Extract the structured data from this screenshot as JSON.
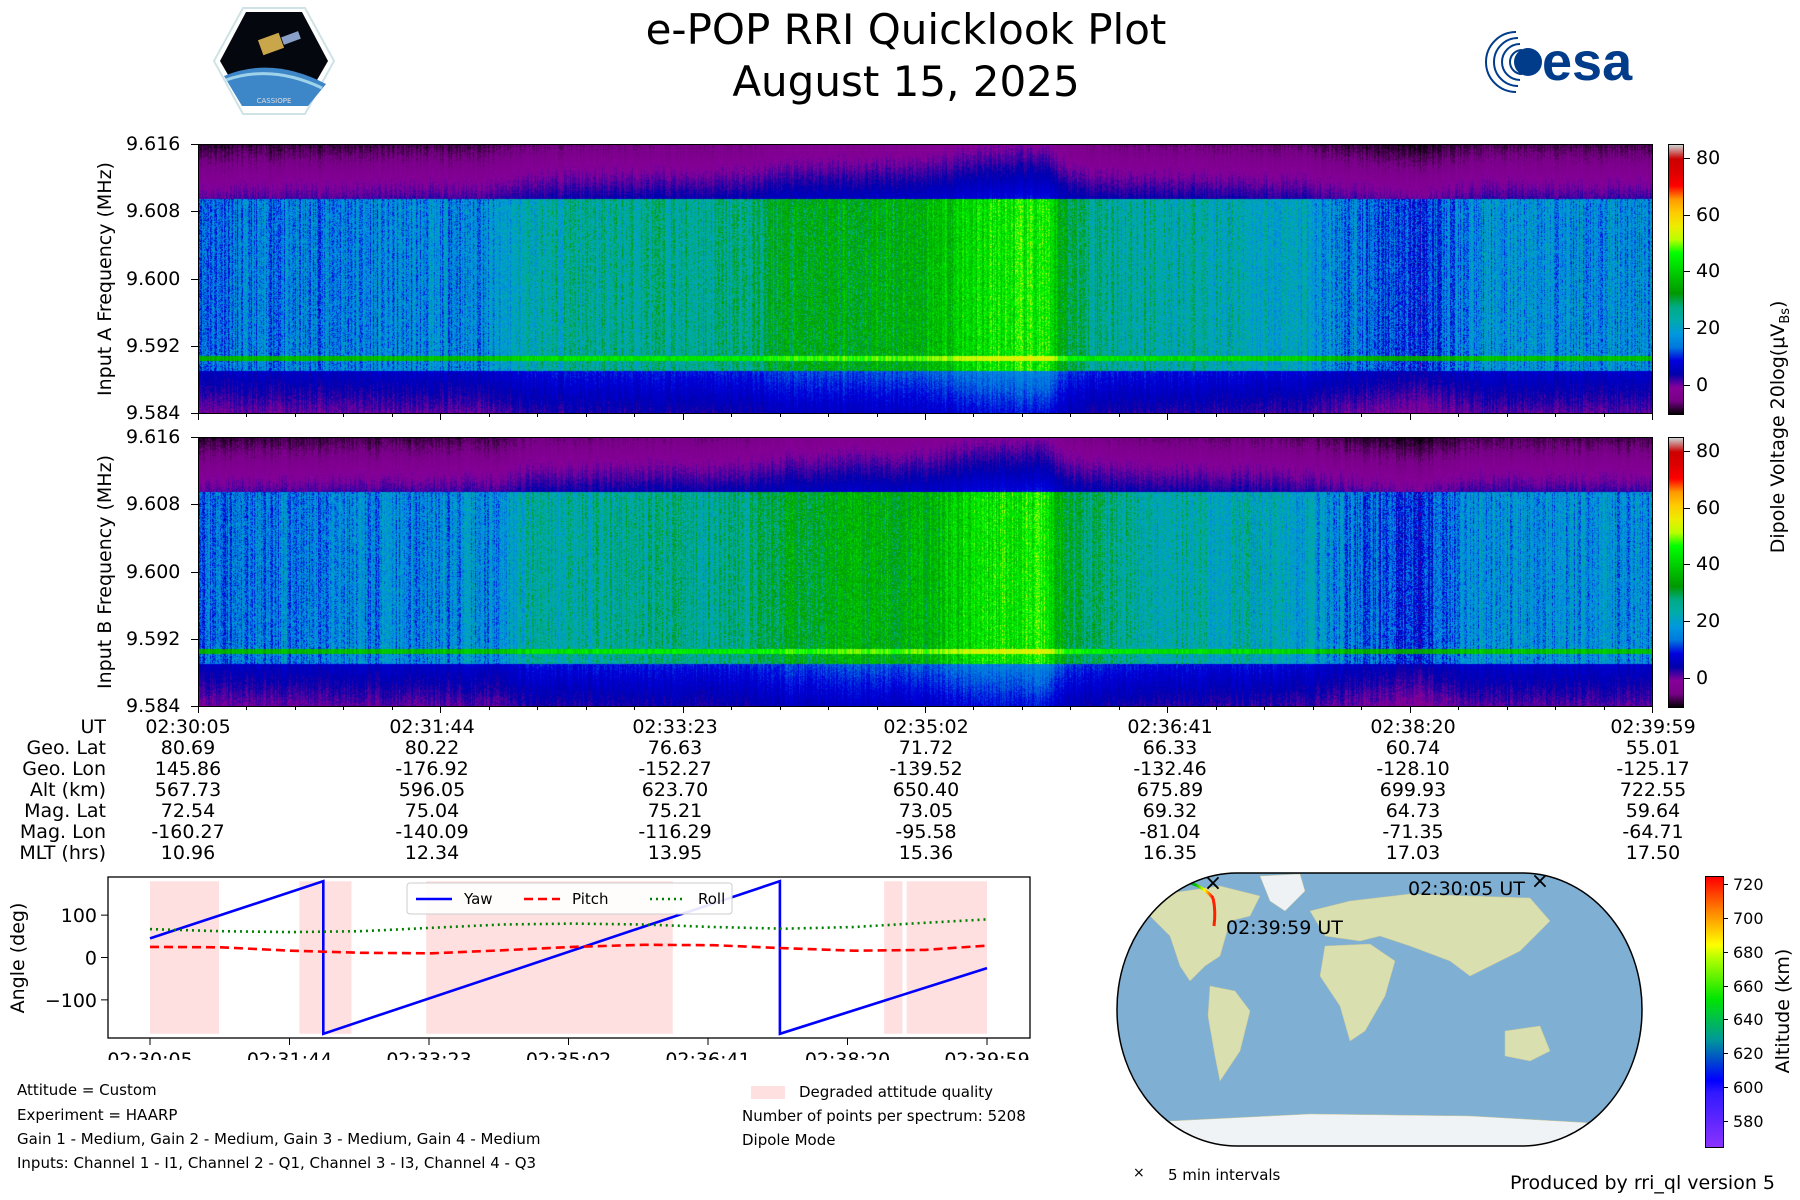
{
  "header": {
    "title": "e-POP RRI Quicklook Plot",
    "date": "August 15, 2025",
    "left_logo_text": "CASSIOPE",
    "right_logo_text": "esa"
  },
  "spectrograms": {
    "panels": [
      {
        "ylabel": "Input A Frequency (MHz)"
      },
      {
        "ylabel": "Input B Frequency (MHz)"
      }
    ],
    "yticks": [
      "9.584",
      "9.592",
      "9.600",
      "9.608",
      "9.616"
    ],
    "ylim": [
      9.584,
      9.616
    ],
    "colorbar": {
      "label": "Dipole Voltage 20log(μV",
      "label_sub": "Bs",
      "label_end": ")",
      "ticks": [
        "0",
        "20",
        "40",
        "60",
        "80"
      ],
      "range": [
        -10,
        85
      ]
    }
  },
  "table": {
    "labels": [
      "UT",
      "Geo. Lat",
      "Geo. Lon",
      "Alt (km)",
      "Mag. Lat",
      "Mag. Lon",
      "MLT (hrs)"
    ],
    "columns": [
      [
        "02:30:05",
        "80.69",
        "145.86",
        "567.73",
        "72.54",
        "-160.27",
        "10.96"
      ],
      [
        "02:31:44",
        "80.22",
        "-176.92",
        "596.05",
        "75.04",
        "-140.09",
        "12.34"
      ],
      [
        "02:33:23",
        "76.63",
        "-152.27",
        "623.70",
        "75.21",
        "-116.29",
        "13.95"
      ],
      [
        "02:35:02",
        "71.72",
        "-139.52",
        "650.40",
        "73.05",
        "-95.58",
        "15.36"
      ],
      [
        "02:36:41",
        "66.33",
        "-132.46",
        "675.89",
        "69.32",
        "-81.04",
        "16.35"
      ],
      [
        "02:38:20",
        "60.74",
        "-128.10",
        "699.93",
        "64.73",
        "-71.35",
        "17.03"
      ],
      [
        "02:39:59",
        "55.01",
        "-125.17",
        "722.55",
        "59.64",
        "-64.71",
        "17.50"
      ]
    ]
  },
  "chart_data": [
    {
      "type": "line",
      "title": "",
      "ylabel": "Angle (deg)",
      "xlabel": "",
      "x_unit": "seconds since 02:30:05",
      "xlim": [
        0,
        594
      ],
      "ylim": [
        -190,
        190
      ],
      "xticks": [
        0,
        99,
        198,
        297,
        396,
        495,
        594
      ],
      "xtick_labels": [
        "02:30:05",
        "02:31:44",
        "02:33:23",
        "02:35:02",
        "02:36:41",
        "02:38:20",
        "02:39:59"
      ],
      "yticks": [
        -100,
        0,
        100
      ],
      "ytick_labels": [
        "−100",
        "0",
        "100"
      ],
      "legend": "top-center",
      "series": [
        {
          "name": "Yaw",
          "color": "#0000ff",
          "style": "solid",
          "x": [
            0,
            123,
            123.01,
            447,
            447.01,
            594
          ],
          "y": [
            45,
            180,
            -180,
            180,
            -180,
            -25
          ]
        },
        {
          "name": "Pitch",
          "color": "#ff0000",
          "style": "dashed",
          "x": [
            0,
            50,
            100,
            150,
            200,
            250,
            300,
            350,
            400,
            450,
            500,
            550,
            594
          ],
          "y": [
            25,
            24,
            16,
            11,
            10,
            17,
            25,
            30,
            29,
            22,
            16,
            18,
            28
          ]
        },
        {
          "name": "Roll",
          "color": "#008000",
          "style": "dotted",
          "x": [
            0,
            50,
            100,
            150,
            200,
            250,
            300,
            350,
            400,
            450,
            500,
            550,
            594
          ],
          "y": [
            67,
            62,
            60,
            62,
            70,
            78,
            80,
            78,
            72,
            68,
            72,
            82,
            90
          ]
        }
      ],
      "shaded_regions": {
        "label": "Degraded attitude quality",
        "color": "#ffe0e0",
        "spans": [
          [
            0,
            49
          ],
          [
            106,
            143
          ],
          [
            196,
            371
          ],
          [
            521,
            534
          ],
          [
            537,
            594
          ]
        ]
      }
    }
  ],
  "info": {
    "attitude": "Attitude = Custom",
    "experiment": "Experiment = HAARP",
    "gains": "Gain 1 - Medium, Gain 2 - Medium, Gain 3 - Medium, Gain 4 - Medium",
    "inputs": "Inputs: Channel 1 - I1, Channel 2 - Q1, Channel 3 - I3, Channel 4 - Q3",
    "points": "Number of points per spectrum: 5208",
    "mode": "Dipole Mode"
  },
  "map": {
    "start_label": "02:30:05 UT",
    "end_label": "02:39:59 UT",
    "marker_legend": "5 min intervals",
    "colorbar": {
      "label": "Altitude (km)",
      "ticks": [
        "580",
        "600",
        "620",
        "640",
        "660",
        "680",
        "700",
        "720"
      ],
      "range": [
        565,
        725
      ]
    }
  },
  "footer": {
    "produced_by": "Produced by rri_ql version 5"
  }
}
